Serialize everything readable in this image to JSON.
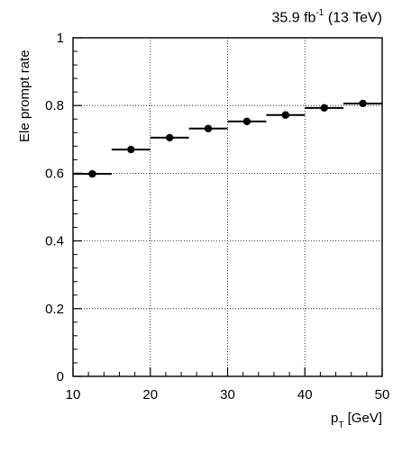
{
  "header": {
    "lumi_value": "35.9 fb",
    "lumi_exponent": "-1",
    "lumi_energy": "(13 TeV)"
  },
  "chart_data": {
    "type": "scatter",
    "ylabel": "Ele prompt rate",
    "xlabel_main": "p",
    "xlabel_sub": "T",
    "xlabel_unit": "[GeV]",
    "xlim": [
      10,
      50
    ],
    "ylim": [
      0,
      1
    ],
    "grid": true,
    "x_ticks": [
      "10",
      "20",
      "30",
      "40",
      "50"
    ],
    "y_ticks": [
      "0",
      "0.2",
      "0.4",
      "0.6",
      "0.8",
      "1"
    ],
    "series": [
      {
        "points": [
          {
            "x_low": 10,
            "x_high": 15,
            "x": 12.5,
            "y": 0.598
          },
          {
            "x_low": 15,
            "x_high": 20,
            "x": 17.5,
            "y": 0.67
          },
          {
            "x_low": 20,
            "x_high": 25,
            "x": 22.5,
            "y": 0.705
          },
          {
            "x_low": 25,
            "x_high": 30,
            "x": 27.5,
            "y": 0.732
          },
          {
            "x_low": 30,
            "x_high": 35,
            "x": 32.5,
            "y": 0.753
          },
          {
            "x_low": 35,
            "x_high": 40,
            "x": 37.5,
            "y": 0.772
          },
          {
            "x_low": 40,
            "x_high": 45,
            "x": 42.5,
            "y": 0.793
          },
          {
            "x_low": 45,
            "x_high": 50,
            "x": 47.5,
            "y": 0.806
          }
        ]
      }
    ]
  }
}
